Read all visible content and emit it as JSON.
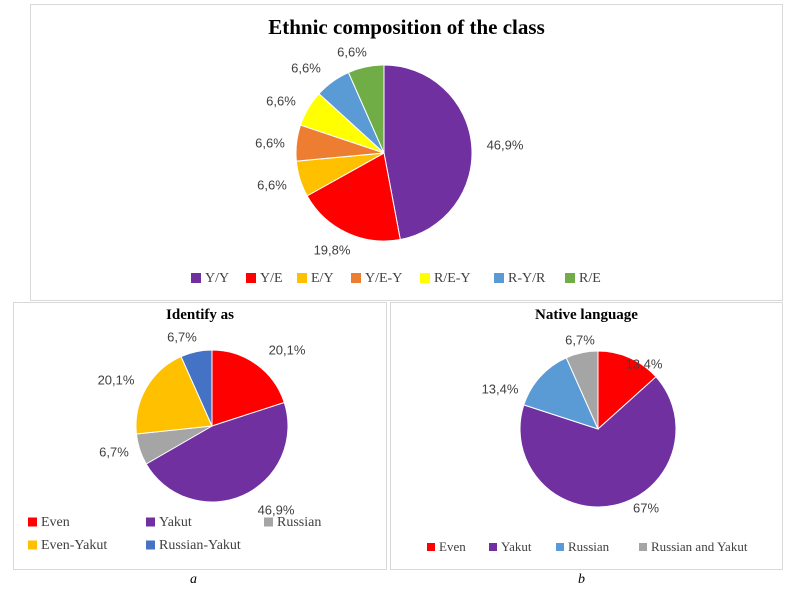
{
  "chart_data": [
    {
      "type": "pie",
      "title": "Ethnic composition of the class",
      "categories": [
        "Y/Y",
        "Y/E",
        "E/Y",
        "Y/E-Y",
        "R/E-Y",
        "R-Y/R",
        "R/E"
      ],
      "values": [
        46.9,
        19.8,
        6.6,
        6.6,
        6.6,
        6.6,
        6.6
      ],
      "labels": [
        "46,9%",
        "19,8%",
        "6,6%",
        "6,6%",
        "6,6%",
        "6,6%",
        "6,6%"
      ],
      "colors": [
        "#7030a0",
        "#ff0000",
        "#ffc000",
        "#ed7d31",
        "#ffff00",
        "#5b9bd5",
        "#70ad47"
      ],
      "legend": "bottom"
    },
    {
      "type": "pie",
      "title": "Identify as",
      "categories": [
        "Even",
        "Yakut",
        "Russian",
        "Even-Yakut",
        "Russian-Yakut"
      ],
      "values": [
        20.1,
        46.9,
        6.7,
        20.1,
        6.7
      ],
      "labels": [
        "20,1%",
        "46,9%",
        "6,7%",
        "20,1%",
        "6,7%"
      ],
      "colors": [
        "#ff0000",
        "#7030a0",
        "#a5a5a5",
        "#ffc000",
        "#4472c4"
      ],
      "legend": "bottom"
    },
    {
      "type": "pie",
      "title": "Native language",
      "categories": [
        "Even",
        "Yakut",
        "Russian",
        "Russian and Yakut"
      ],
      "values": [
        13.4,
        67,
        13.4,
        6.7
      ],
      "labels": [
        "13,4%",
        "67%",
        "13,4%",
        "6,7%"
      ],
      "colors": [
        "#ff0000",
        "#7030a0",
        "#5b9bd5",
        "#a5a5a5"
      ],
      "legend": "bottom"
    }
  ],
  "captions": {
    "a": "a",
    "b": "b"
  }
}
